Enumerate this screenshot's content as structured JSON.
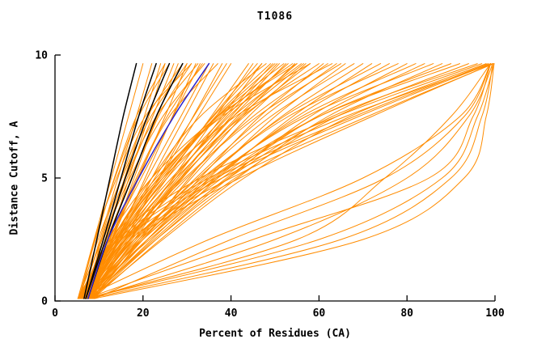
{
  "chart_data": {
    "type": "line",
    "title": "T1086",
    "xlabel": "Percent of Residues (CA)",
    "ylabel": "Distance Cutoff, A",
    "xlim": [
      0,
      100
    ],
    "ylim": [
      0,
      10
    ],
    "xticks": [
      0,
      20,
      40,
      60,
      80,
      100
    ],
    "yticks": [
      0,
      5,
      10
    ],
    "grid": false,
    "legend": null,
    "y_levels": [
      0.1,
      2.5,
      5,
      7.5,
      9.65
    ],
    "colors": {
      "o": "#ff8c00",
      "k": "#000000",
      "b": "#2a22cc"
    },
    "series": [
      {
        "c": "o",
        "x": [
          5.2,
          8.9,
          12.8,
          16.7,
          20
        ]
      },
      {
        "c": "o",
        "x": [
          6.2,
          10.2,
          14.3,
          18.5,
          22
        ]
      },
      {
        "c": "o",
        "x": [
          7.2,
          11.4,
          15.8,
          20.3,
          24
        ]
      },
      {
        "c": "o",
        "x": [
          8.2,
          12.4,
          16.8,
          21.3,
          25
        ]
      },
      {
        "c": "o",
        "x": [
          5.2,
          10.7,
          16.4,
          22.2,
          27
        ]
      },
      {
        "c": "o",
        "x": [
          6.2,
          11.7,
          17.4,
          23.2,
          28
        ]
      },
      {
        "c": "o",
        "x": [
          7.2,
          13,
          19,
          25,
          30
        ]
      },
      {
        "c": "o",
        "x": [
          8.2,
          14.2,
          20.5,
          26.7,
          32
        ]
      },
      {
        "c": "o",
        "x": [
          5.2,
          12.3,
          19.6,
          26.8,
          33
        ]
      },
      {
        "c": "o",
        "x": [
          6.2,
          13.5,
          21,
          28.6,
          35
        ]
      },
      {
        "c": "o",
        "x": [
          7.2,
          14.5,
          22,
          29.6,
          36
        ]
      },
      {
        "c": "o",
        "x": [
          8.2,
          15.8,
          23.6,
          31.4,
          38
        ]
      },
      {
        "c": "o",
        "x": [
          5.2,
          13.8,
          22.7,
          31.5,
          39
        ]
      },
      {
        "c": "o",
        "x": [
          6.2,
          14.8,
          23.7,
          32.5,
          40
        ]
      },
      {
        "c": "o",
        "x": [
          6.8,
          9.5,
          13.5,
          18.5,
          25
        ]
      },
      {
        "c": "o",
        "x": [
          7.5,
          10.5,
          15,
          21,
          29
        ]
      },
      {
        "c": "o",
        "x": [
          5.8,
          9,
          14,
          20.5,
          31
        ]
      },
      {
        "c": "o",
        "x": [
          6.5,
          11,
          17,
          24.5,
          34
        ]
      },
      {
        "c": "o",
        "x": [
          7,
          12.5,
          18.5,
          25.5,
          33.5
        ]
      },
      {
        "c": "o",
        "x": [
          5.5,
          9.8,
          15.2,
          21.8,
          30
        ]
      },
      {
        "c": "o",
        "x": [
          8,
          13,
          18,
          23.5,
          31
        ]
      },
      {
        "c": "o",
        "x": [
          6,
          10.5,
          16,
          23,
          32.5
        ]
      },
      {
        "c": "o",
        "x": [
          7.8,
          12.8,
          18.8,
          26,
          37
        ]
      },
      {
        "c": "o",
        "x": [
          5.4,
          9.2,
          13.6,
          19,
          26
        ]
      },
      {
        "c": "o",
        "x": [
          6.1,
          12.7,
          23.6,
          36.8,
          50
        ]
      },
      {
        "c": "o",
        "x": [
          7.2,
          16.9,
          26.8,
          36.6,
          45
        ]
      },
      {
        "c": "o",
        "x": [
          6.2,
          15.5,
          25.5,
          35.5,
          44
        ]
      },
      {
        "c": "o",
        "x": [
          8.2,
          17,
          27.5,
          38,
          47
        ]
      },
      {
        "c": "o",
        "x": [
          5.2,
          14,
          24.5,
          35.8,
          46
        ]
      },
      {
        "c": "o",
        "x": [
          6.5,
          13,
          22,
          33,
          48
        ]
      },
      {
        "c": "o",
        "x": [
          7,
          15,
          25,
          36.5,
          49
        ]
      },
      {
        "c": "o",
        "x": [
          8,
          18,
          28.5,
          40,
          51
        ]
      },
      {
        "c": "o",
        "x": [
          5.8,
          14.5,
          25,
          37,
          52
        ]
      },
      {
        "c": "o",
        "x": [
          6.8,
          16,
          27,
          39.5,
          53
        ]
      },
      {
        "c": "o",
        "x": [
          7.5,
          17.5,
          29,
          41.5,
          55
        ]
      },
      {
        "c": "o",
        "x": [
          5.5,
          13.5,
          24,
          37.5,
          54
        ]
      },
      {
        "c": "o",
        "x": [
          8.5,
          19,
          31,
          44,
          57
        ]
      },
      {
        "c": "o",
        "x": [
          6.3,
          14.8,
          26.5,
          40.5,
          56
        ]
      },
      {
        "c": "o",
        "x": [
          7.1,
          16.5,
          28.5,
          43,
          58
        ]
      },
      {
        "c": "o",
        "x": [
          5.9,
          15.2,
          27.5,
          42.5,
          60
        ]
      },
      {
        "c": "o",
        "x": [
          8.3,
          20,
          33,
          46.5,
          61
        ]
      },
      {
        "c": "o",
        "x": [
          6.6,
          17,
          30,
          45,
          62
        ]
      },
      {
        "c": "o",
        "x": [
          7.4,
          18.5,
          32,
          47.5,
          64
        ]
      },
      {
        "c": "o",
        "x": [
          5.6,
          16,
          29.5,
          46,
          65
        ]
      },
      {
        "c": "o",
        "x": [
          8.6,
          21,
          35,
          50,
          66
        ]
      },
      {
        "c": "o",
        "x": [
          6.9,
          18,
          32.5,
          49,
          68
        ]
      },
      {
        "c": "o",
        "x": [
          7.7,
          19.5,
          34.5,
          51.5,
          70
        ]
      },
      {
        "c": "o",
        "x": [
          6.1,
          13,
          23,
          38,
          58
        ]
      },
      {
        "c": "o",
        "x": [
          7.3,
          14,
          24.5,
          41,
          63
        ]
      },
      {
        "c": "o",
        "x": [
          5.7,
          12,
          22,
          37,
          55
        ]
      },
      {
        "c": "o",
        "x": [
          6.4,
          15.8,
          27,
          39,
          50.5
        ]
      },
      {
        "c": "o",
        "x": [
          7.6,
          17.2,
          28,
          40.5,
          52.5
        ]
      },
      {
        "c": "o",
        "x": [
          5.3,
          13.2,
          23.5,
          36,
          47
        ]
      },
      {
        "c": "o",
        "x": [
          8.9,
          19.5,
          30.5,
          42.5,
          54.5
        ]
      },
      {
        "c": "o",
        "x": [
          6.0,
          14.2,
          25.5,
          38.5,
          49.5
        ]
      },
      {
        "c": "o",
        "x": [
          7.0,
          16.2,
          28.8,
          42,
          56.5
        ]
      },
      {
        "c": "o",
        "x": [
          8.1,
          22,
          37,
          54,
          72
        ]
      },
      {
        "c": "o",
        "x": [
          6.4,
          19,
          34,
          52,
          74
        ]
      },
      {
        "c": "o",
        "x": [
          7.6,
          21,
          36.5,
          55,
          76
        ]
      },
      {
        "c": "o",
        "x": [
          5.9,
          18,
          33.5,
          53,
          78
        ]
      },
      {
        "c": "o",
        "x": [
          8.4,
          23,
          39.5,
          58,
          80
        ]
      },
      {
        "c": "o",
        "x": [
          6.7,
          20,
          36,
          56,
          82
        ]
      },
      {
        "c": "o",
        "x": [
          7.9,
          22.5,
          39,
          59.5,
          84
        ]
      },
      {
        "c": "o",
        "x": [
          6.2,
          19.5,
          35.5,
          57,
          86
        ]
      },
      {
        "c": "o",
        "x": [
          8.7,
          24,
          41.5,
          62,
          88
        ]
      },
      {
        "c": "o",
        "x": [
          7.2,
          21,
          38,
          60,
          90
        ]
      },
      {
        "c": "o",
        "x": [
          6.5,
          20,
          37,
          60,
          92
        ]
      },
      {
        "c": "o",
        "x": [
          7.8,
          23,
          41,
          64,
          94
        ]
      },
      {
        "c": "o",
        "x": [
          6.9,
          21.5,
          39.5,
          63,
          96
        ]
      },
      {
        "c": "o",
        "x": [
          8.2,
          24.5,
          43,
          67,
          98
        ]
      },
      {
        "c": "o",
        "x": [
          6.1,
          14.4,
          35,
          66,
          99.5
        ]
      },
      {
        "c": "o",
        "x": [
          7.4,
          16,
          38,
          69,
          99
        ]
      },
      {
        "c": "o",
        "x": [
          5.8,
          13.5,
          33,
          64,
          97
        ]
      },
      {
        "c": "o",
        "x": [
          8.8,
          18,
          42,
          72,
          99.5
        ]
      },
      {
        "c": "o",
        "x": [
          6.6,
          15,
          36.5,
          68,
          98.5
        ]
      },
      {
        "c": "o",
        "x": [
          7.1,
          17,
          40,
          71,
          99.8
        ]
      },
      {
        "c": "o",
        "x": [
          7,
          55,
          75,
          90,
          99
        ]
      },
      {
        "c": "o",
        "x": [
          8,
          65,
          90,
          97,
          99.5
        ]
      },
      {
        "c": "o",
        "x": [
          7,
          45,
          85,
          95,
          99
        ]
      },
      {
        "c": "o",
        "x": [
          9,
          70,
          93,
          98,
          99.8
        ]
      },
      {
        "c": "o",
        "x": [
          6,
          35,
          70,
          92,
          99
        ]
      },
      {
        "c": "o",
        "x": [
          8,
          50,
          80,
          94,
          99.5
        ]
      },
      {
        "c": "o",
        "x": [
          7,
          60,
          88,
          96,
          99.8
        ]
      },
      {
        "c": "o",
        "x": [
          9,
          40,
          75,
          93,
          99
        ]
      },
      {
        "c": "k",
        "x": [
          6.6,
          9.5,
          12.5,
          15.5,
          18.5
        ]
      },
      {
        "c": "k",
        "x": [
          7,
          11,
          15,
          19,
          23
        ]
      },
      {
        "c": "k",
        "x": [
          7,
          11.5,
          16,
          21,
          26
        ]
      },
      {
        "c": "k",
        "x": [
          7.5,
          12,
          17.5,
          23,
          29
        ]
      },
      {
        "c": "b",
        "x": [
          7.5,
          12,
          19,
          27,
          35
        ]
      }
    ]
  }
}
